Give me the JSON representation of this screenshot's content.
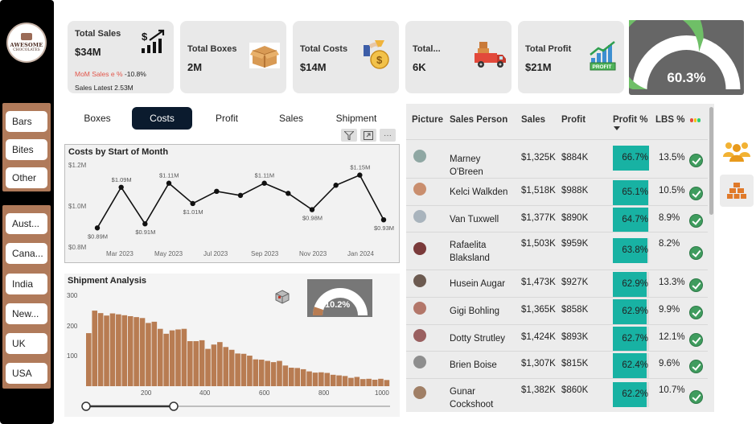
{
  "brand": {
    "logo_line1": "AWESOME",
    "logo_line2": "CHOCOLATES"
  },
  "sidebar": {
    "product_filters": [
      "Bars",
      "Bites",
      "Other"
    ],
    "country_filters": [
      "Aust...",
      "Cana...",
      "India",
      "New...",
      "UK",
      "USA"
    ]
  },
  "kpis": {
    "total_sales": {
      "label": "Total Sales",
      "value": "$34M",
      "mom_label": "MoM Sales e %",
      "mom_value": "-10.8%",
      "latest": "Sales Latest 2.53M",
      "icon": "growth-chart-icon"
    },
    "total_boxes": {
      "label": "Total Boxes",
      "value": "2M",
      "icon": "box-icon"
    },
    "total_costs": {
      "label": "Total Costs",
      "value": "$14M",
      "icon": "money-bag-icon"
    },
    "total_shipments": {
      "label": "Total...",
      "value": "6K",
      "icon": "truck-icon"
    },
    "total_profit": {
      "label": "Total Profit",
      "value": "$21M",
      "icon": "profit-chart-icon",
      "badge": "PROFIT"
    }
  },
  "profit_gauge": {
    "value": 60.3,
    "label": "60.3%",
    "fill_color": "#6fbf67",
    "track_color": "#ffffff"
  },
  "tabs": [
    {
      "label": "Boxes",
      "active": false
    },
    {
      "label": "Costs",
      "active": true
    },
    {
      "label": "Profit",
      "active": false
    },
    {
      "label": "Sales",
      "active": false
    },
    {
      "label": "Shipment",
      "active": false
    }
  ],
  "costs_chart": {
    "title": "Costs by Start of Month",
    "y_ticks": [
      "$1.2M",
      "$1.0M",
      "$0.8M"
    ],
    "x_ticks": [
      "Mar 2023",
      "May 2023",
      "Jul 2023",
      "Sep 2023",
      "Nov 2023",
      "Jan 2024"
    ]
  },
  "chart_data": [
    {
      "type": "line",
      "title": "Costs by Start of Month",
      "x": [
        "2023-02",
        "2023-03",
        "2023-04",
        "2023-05",
        "2023-06",
        "2023-07",
        "2023-08",
        "2023-09",
        "2023-10",
        "2023-11",
        "2023-12",
        "2024-01",
        "2024-02"
      ],
      "values": [
        0.89,
        1.09,
        0.91,
        1.11,
        1.01,
        1.07,
        1.05,
        1.11,
        1.06,
        0.98,
        1.1,
        1.15,
        0.93
      ],
      "data_labels": [
        "$0.89M",
        "$1.09M",
        "$0.91M",
        "$1.11M",
        "$1.01M",
        "",
        "",
        "$1.11M",
        "",
        "$0.98M",
        "",
        "$1.15M",
        "$0.93M"
      ],
      "ylim": [
        0.8,
        1.2
      ],
      "unit": "$M",
      "line_color": "#111111"
    },
    {
      "type": "bar",
      "title": "Shipment Analysis",
      "x_ticks": [
        200,
        400,
        600,
        800,
        1000
      ],
      "y_ticks": [
        100,
        200,
        300
      ],
      "xlim": [
        0,
        1020
      ],
      "ylim": [
        0,
        300
      ],
      "bin_width": 20,
      "values": [
        172,
        245,
        237,
        229,
        236,
        233,
        230,
        227,
        224,
        221,
        205,
        209,
        186,
        170,
        181,
        184,
        186,
        146,
        146,
        149,
        121,
        135,
        143,
        127,
        118,
        106,
        105,
        99,
        87,
        86,
        82,
        78,
        82,
        67,
        60,
        59,
        55,
        48,
        44,
        45,
        43,
        37,
        35,
        33,
        27,
        30,
        23,
        24,
        21,
        24,
        20
      ],
      "bar_color": "#b87c52"
    }
  ],
  "shipment": {
    "title": "Shipment Analysis",
    "gauge_label": "10.2%",
    "gauge_value": 10.2,
    "gauge_fill": "#b87c52"
  },
  "table": {
    "headers": {
      "picture": "Picture",
      "person": "Sales Person",
      "sales": "Sales",
      "profit": "Profit",
      "profit_pct": "Profit %",
      "lbs": "LBS %"
    },
    "rows": [
      {
        "name": "Marney O'Breen",
        "sales": "$1,325K",
        "profit": "$884K",
        "profit_pct": "66.7%",
        "pct": 66.7,
        "lbs": "13.5%",
        "avatar": "#8fa7a3"
      },
      {
        "name": "Kelci Walkden",
        "sales": "$1,518K",
        "profit": "$988K",
        "profit_pct": "65.1%",
        "pct": 65.1,
        "lbs": "10.5%",
        "avatar": "#c98e6e"
      },
      {
        "name": "Van Tuxwell",
        "sales": "$1,377K",
        "profit": "$890K",
        "profit_pct": "64.7%",
        "pct": 64.7,
        "lbs": "8.9%",
        "avatar": "#a9b4bd"
      },
      {
        "name": "Rafaelita Blaksland",
        "sales": "$1,503K",
        "profit": "$959K",
        "profit_pct": "63.8%",
        "pct": 63.8,
        "lbs": "8.2%",
        "avatar": "#7a3a3a"
      },
      {
        "name": "Husein Augar",
        "sales": "$1,473K",
        "profit": "$927K",
        "profit_pct": "62.9%",
        "pct": 62.9,
        "lbs": "13.3%",
        "avatar": "#6c5a50"
      },
      {
        "name": "Gigi Bohling",
        "sales": "$1,365K",
        "profit": "$858K",
        "profit_pct": "62.9%",
        "pct": 62.9,
        "lbs": "9.9%",
        "avatar": "#b3776a"
      },
      {
        "name": "Dotty Strutley",
        "sales": "$1,424K",
        "profit": "$893K",
        "profit_pct": "62.7%",
        "pct": 62.7,
        "lbs": "12.1%",
        "avatar": "#9a6060"
      },
      {
        "name": "Brien Boise",
        "sales": "$1,307K",
        "profit": "$815K",
        "profit_pct": "62.4%",
        "pct": 62.4,
        "lbs": "9.6%",
        "avatar": "#8e8e8e"
      },
      {
        "name": "Gunar Cockshoot",
        "sales": "$1,382K",
        "profit": "$860K",
        "profit_pct": "62.2%",
        "pct": 62.2,
        "lbs": "10.7%",
        "avatar": "#a07f66"
      }
    ],
    "bar_color": "#18b2a3",
    "check_color": "#3f9c5e"
  },
  "side_icons": [
    "people-group-icon",
    "boxes-stack-icon"
  ]
}
